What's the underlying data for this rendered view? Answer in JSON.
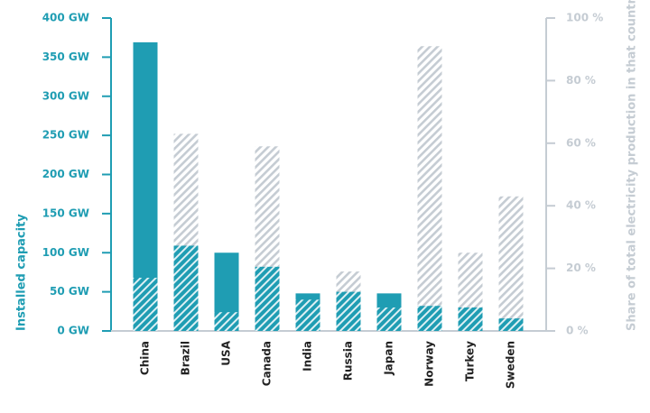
{
  "chart_data": {
    "type": "bar",
    "categories": [
      "China",
      "Brazil",
      "USA",
      "Canada",
      "India",
      "Russia",
      "Japan",
      "Norway",
      "Turkey",
      "Sweden"
    ],
    "series": [
      {
        "color": "#1f9db3",
        "values": [
          369,
          109,
          100,
          82,
          48,
          50,
          48,
          32,
          30,
          16
        ]
      },
      {
        "color": "#c5ccd3",
        "axis": "y2",
        "values": [
          17,
          63,
          6,
          59,
          10,
          19,
          7.5,
          91,
          25,
          43
        ]
      }
    ],
    "ylabel": "Installed capacity",
    "y2label": "Share of total electricity production in that country",
    "ylim": [
      0,
      400
    ],
    "yticks": [
      {
        "value": 0,
        "label": "0 GW"
      },
      {
        "value": 50,
        "label": "50 GW"
      },
      {
        "value": 100,
        "label": "100 GW"
      },
      {
        "value": 150,
        "label": "150 GW"
      },
      {
        "value": 200,
        "label": "200 GW"
      },
      {
        "value": 250,
        "label": "250 GW"
      },
      {
        "value": 300,
        "label": "300 GW"
      },
      {
        "value": 350,
        "label": "350 GW"
      },
      {
        "value": 400,
        "label": "400 GW"
      }
    ],
    "y2lim": [
      0,
      100
    ],
    "y2ticks": [
      {
        "value": 0,
        "label": "0 %"
      },
      {
        "value": 20,
        "label": "20 %"
      },
      {
        "value": 40,
        "label": "40 %"
      },
      {
        "value": 60,
        "label": "60 %"
      },
      {
        "value": 80,
        "label": "80 %"
      },
      {
        "value": 100,
        "label": "100 %"
      }
    ]
  }
}
